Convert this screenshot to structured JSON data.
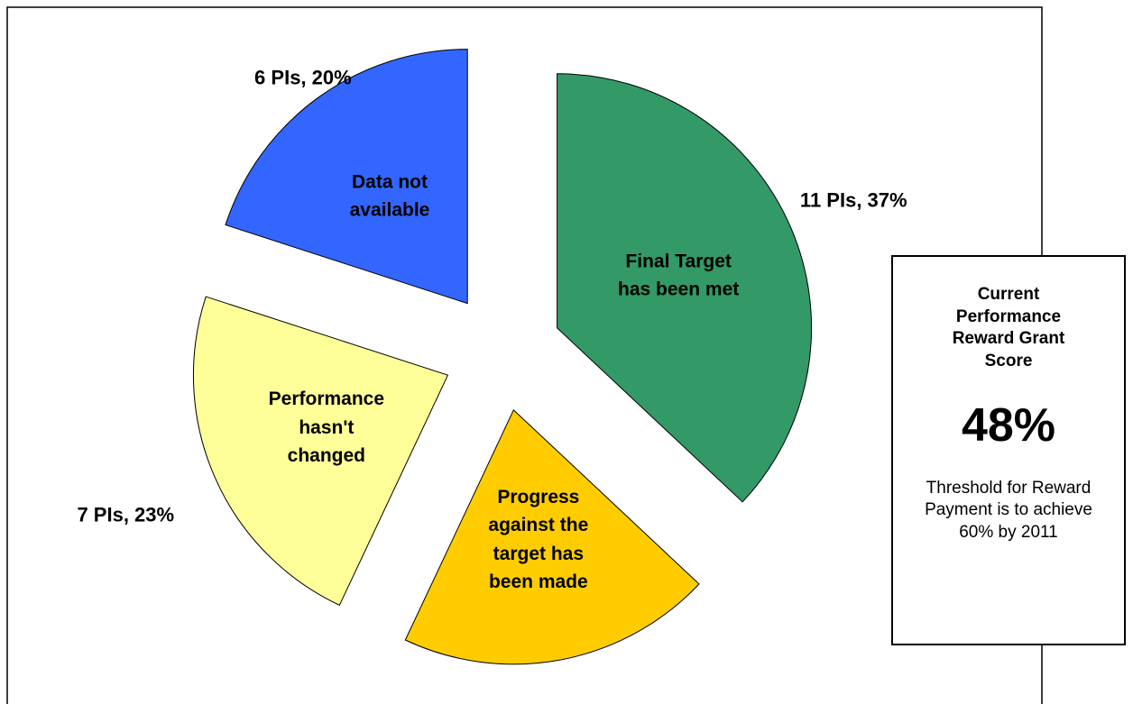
{
  "chart_data": {
    "type": "pie",
    "categories": [
      "Final Target has been met",
      "Progress against the target has been made",
      "Performance hasn't changed",
      "Data not available"
    ],
    "values": [
      37,
      20,
      23,
      20
    ],
    "value_labels": [
      "11 PIs, 37%",
      "6 PIs, 20%",
      "7 PIs, 23%",
      "6 PIs, 20%"
    ],
    "colors": [
      "#339966",
      "#ffcc00",
      "#ffff99",
      "#3366ff"
    ],
    "exploded": true,
    "annotation": {
      "title": "Current Performance Reward Grant Score",
      "score": "48%",
      "note": "Threshold for Reward Payment is to achieve 60% by 2011"
    }
  }
}
